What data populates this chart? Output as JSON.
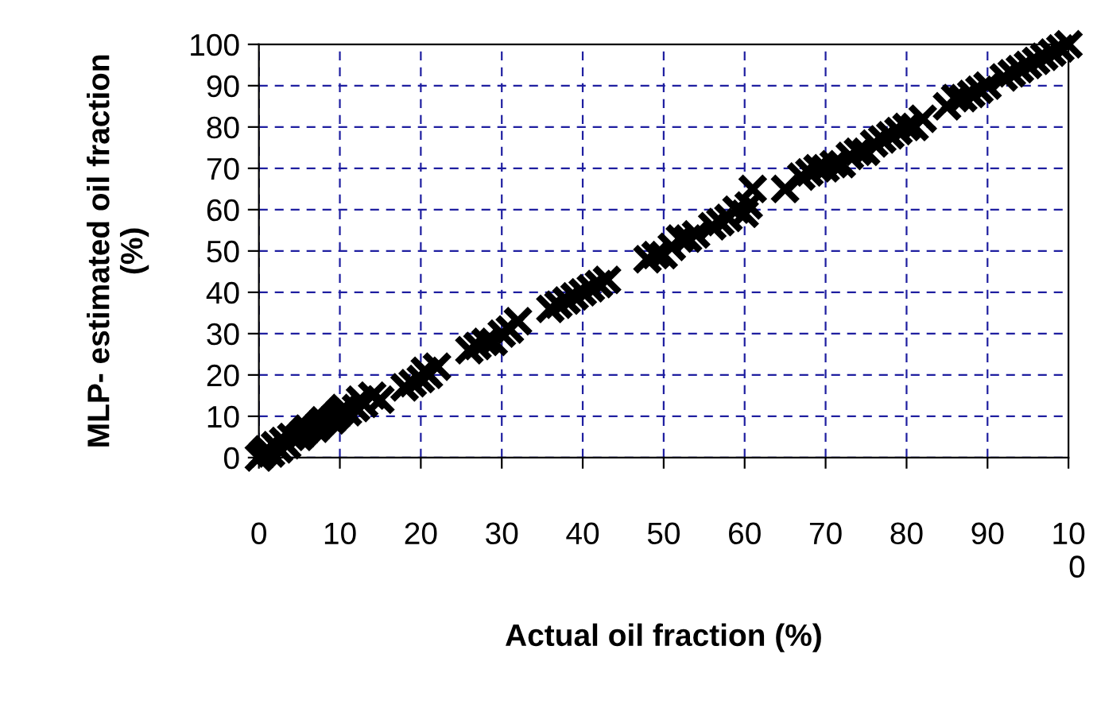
{
  "chart_data": {
    "type": "scatter",
    "xlabel": "Actual oil fraction (%)",
    "ylabel": "MLP- estimated oil fraction\n(%)",
    "x": [
      0,
      0.5,
      1,
      1.5,
      2,
      2.5,
      3,
      3.5,
      4,
      5,
      5.5,
      6,
      7,
      7.5,
      8,
      9,
      9.5,
      10,
      10.5,
      11,
      12,
      12.5,
      13,
      14,
      15,
      18,
      19,
      20,
      20.5,
      21,
      22,
      26,
      27,
      28,
      29,
      30,
      31,
      32,
      36,
      37,
      38,
      39,
      40,
      41,
      42,
      43,
      48,
      49,
      50,
      51,
      52,
      53,
      54,
      56,
      57,
      58,
      59,
      60,
      60.5,
      61,
      65,
      67,
      68,
      69,
      70,
      71,
      72,
      73,
      74,
      75,
      76,
      77,
      78,
      79,
      80,
      81,
      82,
      85,
      86,
      87,
      88,
      89,
      90,
      92,
      93,
      94,
      95,
      96,
      97,
      98,
      99,
      100
    ],
    "values": [
      0,
      1,
      2,
      1,
      3,
      2,
      4,
      3,
      5,
      5,
      6,
      7,
      7,
      8,
      9,
      9,
      10,
      11,
      12,
      11,
      12,
      14,
      13,
      15,
      14,
      17,
      18,
      19,
      21,
      20,
      22,
      26,
      27,
      28,
      28,
      30,
      31,
      33,
      36,
      37,
      38,
      39,
      40,
      41,
      42,
      43,
      48,
      49,
      49,
      51,
      53,
      53,
      54,
      56,
      57,
      58,
      60,
      59,
      61,
      65,
      65,
      68,
      69,
      70,
      70,
      71,
      71,
      73,
      74,
      74,
      76,
      77,
      78,
      79,
      80,
      80,
      82,
      85,
      87,
      87,
      88,
      89,
      90,
      92,
      93,
      94,
      95,
      96,
      97,
      98,
      99,
      100
    ],
    "color": "#000000",
    "marker": "cross",
    "xlim": [
      0,
      100
    ],
    "xticks": [
      0,
      10,
      20,
      30,
      40,
      50,
      60,
      70,
      80,
      90,
      {
        "value": 100,
        "label": "10\n0"
      }
    ],
    "ylim": [
      0,
      100
    ],
    "yticks": [
      0,
      10,
      20,
      30,
      40,
      50,
      60,
      70,
      80,
      90,
      100
    ],
    "grid": true
  }
}
